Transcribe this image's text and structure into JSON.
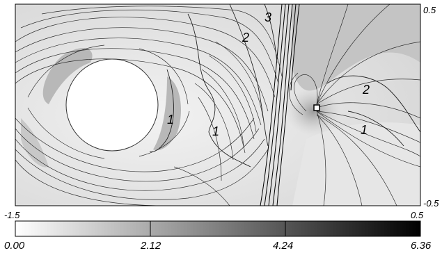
{
  "plot": {
    "x_min_label": "-1.5",
    "x_max_label": "0.5",
    "y_max_label": "0.5",
    "y_min_label": "-0.5"
  },
  "contour_labels": [
    "1",
    "1",
    "1",
    "2",
    "2",
    "3"
  ],
  "colorbar": {
    "ticks": [
      "0.00",
      "2.12",
      "4.24",
      "6.36"
    ],
    "range": [
      0.0,
      6.36
    ],
    "colors": [
      "#ffffff",
      "#000000"
    ]
  }
}
